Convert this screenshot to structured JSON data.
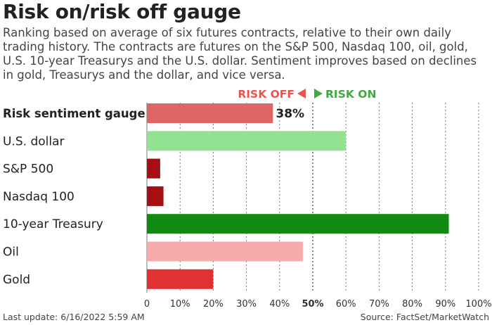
{
  "title": "Risk on/risk off gauge",
  "subtitle": "Ranking based on average of six futures contracts, relative to their own daily trading history. The contracts are futures on the S&P 500, Nasdaq 100, oil, gold, U.S. 10-year Treasurys and the U.S. dollar. Sentiment improves based on declines in gold, Treasurys and the dollar, and vice versa.",
  "legend": {
    "risk_off": "RISK OFF",
    "risk_on": "RISK ON",
    "risk_off_color": "#e8554e",
    "risk_on_color": "#43a843"
  },
  "footer": {
    "last_update": "Last update: 6/16/2022 5:59 AM",
    "source": "Source: FactSet/MarketWatch"
  },
  "chart_data": {
    "type": "bar",
    "orientation": "horizontal",
    "categories": [
      "Risk sentiment gauge",
      "U.S. dollar",
      "S&P 500",
      "Nasdaq 100",
      "10-year Treasury",
      "Oil",
      "Gold"
    ],
    "values": [
      38,
      60,
      4,
      5,
      91,
      47,
      20
    ],
    "colors": [
      "#e06666",
      "#93e293",
      "#a50f0f",
      "#a50f0f",
      "#108a10",
      "#f7aaaa",
      "#e03232"
    ],
    "data_labels": [
      "38%",
      "",
      "",
      "",
      "",
      "",
      ""
    ],
    "bold_categories": [
      "Risk sentiment gauge"
    ],
    "xlim": [
      0,
      100
    ],
    "xticks": [
      "0",
      "10%",
      "20%",
      "30%",
      "40%",
      "50%",
      "60%",
      "70%",
      "80%",
      "90%",
      "100%"
    ],
    "bold_ticks": [
      "50%"
    ],
    "grid": "vertical dashed",
    "midline": 50
  }
}
